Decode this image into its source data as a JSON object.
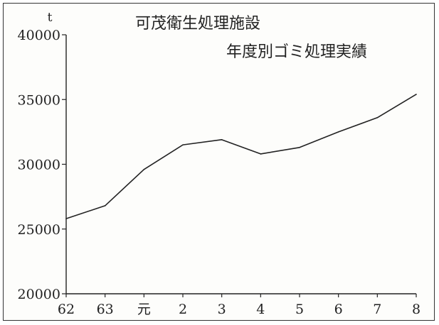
{
  "chart_data": {
    "type": "line",
    "title": "可茂衛生処理施設",
    "subtitle": "年度別ゴミ処理実績",
    "ylabel": "t",
    "xlabel": "",
    "categories": [
      "62",
      "63",
      "元",
      "2",
      "3",
      "4",
      "5",
      "6",
      "7",
      "8"
    ],
    "series": [
      {
        "values": [
          25800,
          26800,
          29600,
          31500,
          31900,
          30800,
          31300,
          32500,
          33600,
          35400
        ]
      }
    ],
    "ylim": [
      20000,
      40000
    ],
    "yticks": [
      20000,
      25000,
      30000,
      35000,
      40000
    ],
    "grid": false,
    "line_color": "#222222"
  }
}
